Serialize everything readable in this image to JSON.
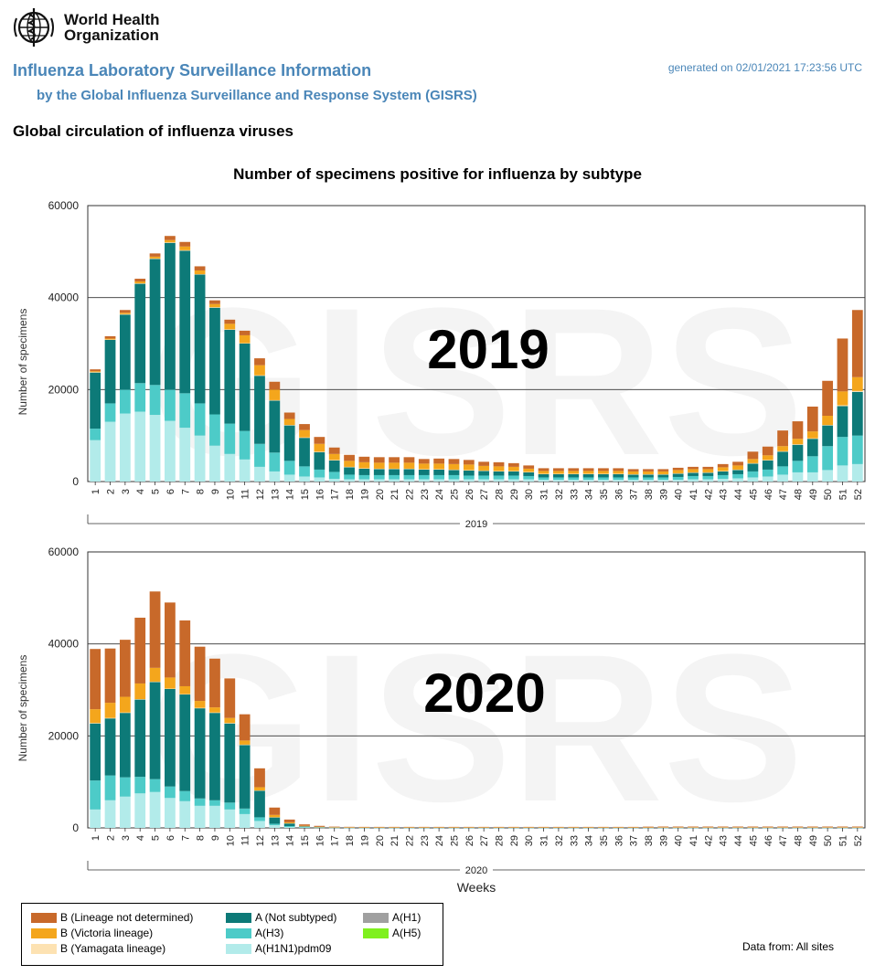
{
  "header": {
    "org_line1": "World Health",
    "org_line2": "Organization",
    "title": "Influenza Laboratory Surveillance Information",
    "subtitle": "by the Global Influenza Surveillance and Response System (GISRS)",
    "generated": "generated on 02/01/2021 17:23:56 UTC",
    "page_title": "Global circulation of influenza viruses"
  },
  "watermark": "GISRS",
  "colors": {
    "B_not_determined": "#c8692a",
    "B_victoria": "#f4a61c",
    "B_yamagata": "#fde2b2",
    "A_not_subtyped": "#0d7a78",
    "A_H3": "#4dcbc8",
    "A_H1N1pdm09": "#b2ebea",
    "A_H1": "#a0a0a0",
    "A_H5": "#7ff01e"
  },
  "legend": [
    {
      "key": "B_not_determined",
      "label": "B (Lineage not determined)"
    },
    {
      "key": "B_victoria",
      "label": "B (Victoria lineage)"
    },
    {
      "key": "B_yamagata",
      "label": "B (Yamagata lineage)"
    },
    {
      "key": "A_not_subtyped",
      "label": "A (Not subtyped)"
    },
    {
      "key": "A_H3",
      "label": "A(H3)"
    },
    {
      "key": "A_H1N1pdm09",
      "label": "A(H1N1)pdm09"
    },
    {
      "key": "A_H1",
      "label": "A(H1)"
    },
    {
      "key": "A_H5",
      "label": "A(H5)"
    }
  ],
  "data_from": "Data from: All sites",
  "chart_data": {
    "type": "bar",
    "stacked": true,
    "title": "Number of specimens positive for influenza by subtype",
    "ylabel": "Number of specimens",
    "xlabel": "Weeks",
    "ylim": [
      0,
      60000
    ],
    "yticks": [
      0,
      20000,
      40000,
      60000
    ],
    "grid": true,
    "stack_order": [
      "A_H1N1pdm09",
      "A_H3",
      "A_not_subtyped",
      "A_H1",
      "A_H5",
      "B_yamagata",
      "B_victoria",
      "B_not_determined"
    ],
    "panels": [
      {
        "year_label": "2019",
        "group_label": "2019",
        "weeks": [
          "1",
          "2",
          "3",
          "4",
          "5",
          "6",
          "7",
          "8",
          "9",
          "10",
          "11",
          "12",
          "13",
          "14",
          "15",
          "16",
          "17",
          "18",
          "19",
          "20",
          "21",
          "22",
          "23",
          "24",
          "25",
          "26",
          "27",
          "28",
          "29",
          "30",
          "31",
          "32",
          "33",
          "34",
          "35",
          "36",
          "37",
          "38",
          "39",
          "40",
          "41",
          "42",
          "43",
          "44",
          "45",
          "46",
          "47",
          "48",
          "49",
          "50",
          "51",
          "52"
        ],
        "series": [
          {
            "key": "A_H1N1pdm09",
            "values": [
              9000,
              13000,
              14800,
              15200,
              14500,
              13200,
              11700,
              10000,
              7800,
              6000,
              4800,
              3200,
              2200,
              1500,
              1100,
              900,
              600,
              500,
              500,
              500,
              500,
              500,
              500,
              500,
              500,
              500,
              500,
              500,
              500,
              500,
              400,
              400,
              400,
              400,
              400,
              400,
              400,
              400,
              400,
              400,
              500,
              500,
              600,
              700,
              900,
              1100,
              1500,
              2000,
              2000,
              2500,
              3500,
              3800
            ]
          },
          {
            "key": "A_H3",
            "values": [
              2500,
              4000,
              5200,
              6200,
              6500,
              6800,
              7500,
              7000,
              6800,
              6600,
              6200,
              5000,
              4100,
              3000,
              2200,
              1700,
              1500,
              1000,
              900,
              900,
              900,
              900,
              900,
              900,
              900,
              800,
              800,
              800,
              800,
              700,
              500,
              500,
              500,
              500,
              500,
              500,
              500,
              500,
              500,
              600,
              700,
              700,
              800,
              900,
              1300,
              1500,
              1800,
              2500,
              3500,
              5200,
              6200,
              6200
            ]
          },
          {
            "key": "A_not_subtyped",
            "values": [
              12200,
              13800,
              16300,
              21600,
              27400,
              31900,
              31000,
              28000,
              23200,
              20400,
              19000,
              14800,
              11300,
              7700,
              6200,
              3800,
              2500,
              1600,
              1400,
              1300,
              1300,
              1300,
              1200,
              1200,
              1100,
              1100,
              1000,
              900,
              900,
              800,
              700,
              700,
              700,
              700,
              700,
              700,
              600,
              600,
              600,
              700,
              700,
              700,
              800,
              900,
              1700,
              2000,
              3200,
              3500,
              3800,
              4500,
              6700,
              9500
            ]
          },
          {
            "key": "B_yamagata",
            "values": [
              100,
              100,
              100,
              100,
              100,
              100,
              100,
              100,
              100,
              100,
              100,
              100,
              100,
              100,
              100,
              100,
              100,
              100,
              100,
              100,
              100,
              100,
              100,
              100,
              100,
              100,
              100,
              100,
              100,
              100,
              100,
              100,
              100,
              100,
              100,
              100,
              100,
              100,
              100,
              100,
              100,
              100,
              100,
              100,
              100,
              100,
              100,
              100,
              100,
              100,
              200,
              200
            ]
          },
          {
            "key": "B_victoria",
            "values": [
              200,
              200,
              300,
              400,
              400,
              500,
              800,
              800,
              700,
              1200,
              1700,
              2200,
              2300,
              1300,
              1600,
              1700,
              1300,
              1300,
              1300,
              1300,
              1300,
              1300,
              1200,
              1200,
              1200,
              1200,
              1000,
              1000,
              900,
              700,
              600,
              600,
              600,
              600,
              600,
              600,
              600,
              600,
              600,
              700,
              700,
              700,
              800,
              900,
              900,
              1000,
              1100,
              1200,
              1500,
              2000,
              3000,
              3000
            ]
          },
          {
            "key": "B_not_determined",
            "values": [
              400,
              500,
              600,
              600,
              700,
              900,
              1000,
              900,
              800,
              900,
              1000,
              1500,
              1700,
              1400,
              1300,
              1500,
              1400,
              1300,
              1200,
              1200,
              1200,
              1200,
              1000,
              1100,
              1100,
              1000,
              900,
              900,
              800,
              700,
              600,
              600,
              600,
              600,
              600,
              600,
              500,
              500,
              500,
              500,
              500,
              500,
              700,
              800,
              1600,
              1900,
              3400,
              3800,
              5400,
              7600,
              11500,
              14600
            ]
          }
        ]
      },
      {
        "year_label": "2020",
        "group_label": "2020",
        "weeks": [
          "1",
          "2",
          "3",
          "4",
          "5",
          "6",
          "7",
          "8",
          "9",
          "10",
          "11",
          "12",
          "13",
          "14",
          "15",
          "16",
          "17",
          "18",
          "19",
          "20",
          "21",
          "22",
          "23",
          "24",
          "25",
          "26",
          "27",
          "28",
          "29",
          "30",
          "31",
          "32",
          "33",
          "34",
          "35",
          "36",
          "37",
          "38",
          "39",
          "40",
          "41",
          "42",
          "43",
          "44",
          "45",
          "46",
          "47",
          "48",
          "49",
          "50",
          "51",
          "52"
        ],
        "series": [
          {
            "key": "A_H1N1pdm09",
            "values": [
              4000,
              6000,
              6800,
              7500,
              7800,
              6500,
              5800,
              4800,
              4800,
              4000,
              3000,
              1500,
              600,
              200,
              100,
              50,
              30,
              20,
              20,
              20,
              20,
              20,
              20,
              20,
              20,
              20,
              20,
              20,
              20,
              20,
              20,
              20,
              20,
              20,
              20,
              20,
              20,
              20,
              20,
              20,
              20,
              20,
              20,
              20,
              20,
              20,
              20,
              20,
              20,
              20,
              20,
              20
            ]
          },
          {
            "key": "A_H3",
            "values": [
              6300,
              5400,
              4200,
              3600,
              2800,
              2500,
              2200,
              1600,
              1200,
              1500,
              1200,
              800,
              300,
              200,
              100,
              50,
              30,
              20,
              20,
              20,
              20,
              20,
              20,
              20,
              20,
              20,
              20,
              20,
              20,
              20,
              20,
              20,
              20,
              20,
              20,
              20,
              20,
              20,
              20,
              20,
              20,
              20,
              20,
              20,
              20,
              20,
              20,
              20,
              20,
              20,
              20,
              20
            ]
          },
          {
            "key": "A_not_subtyped",
            "values": [
              12400,
              12400,
              14000,
              16800,
              21100,
              21200,
              21000,
              19600,
              19000,
              17200,
              13800,
              5800,
              1400,
              600,
              150,
              80,
              50,
              30,
              30,
              30,
              30,
              30,
              30,
              30,
              30,
              30,
              30,
              30,
              30,
              30,
              30,
              30,
              30,
              30,
              30,
              30,
              30,
              30,
              30,
              30,
              30,
              30,
              30,
              30,
              30,
              30,
              30,
              30,
              30,
              30,
              30,
              30
            ]
          },
          {
            "key": "B_yamagata",
            "values": [
              100,
              100,
              100,
              100,
              100,
              100,
              100,
              100,
              100,
              100,
              100,
              50,
              20,
              10,
              10,
              10,
              10,
              10,
              10,
              10,
              10,
              10,
              10,
              10,
              10,
              10,
              10,
              10,
              10,
              10,
              10,
              10,
              10,
              10,
              10,
              10,
              10,
              10,
              10,
              10,
              10,
              10,
              10,
              10,
              10,
              10,
              10,
              10,
              10,
              10,
              10,
              10
            ]
          },
          {
            "key": "B_victoria",
            "values": [
              3000,
              3300,
              3400,
              3400,
              3000,
              2400,
              1700,
              1500,
              1100,
              1100,
              900,
              700,
              500,
              200,
              100,
              50,
              50,
              50,
              40,
              40,
              40,
              40,
              40,
              40,
              40,
              40,
              40,
              40,
              40,
              40,
              40,
              40,
              40,
              40,
              40,
              40,
              40,
              40,
              60,
              60,
              60,
              60,
              60,
              60,
              60,
              60,
              60,
              60,
              60,
              60,
              60,
              60
            ]
          },
          {
            "key": "B_not_determined",
            "values": [
              13100,
              11800,
              12400,
              14300,
              16600,
              16300,
              14300,
              11800,
              10600,
              8600,
              5700,
              4100,
              1600,
              600,
              300,
              200,
              100,
              100,
              100,
              100,
              100,
              100,
              100,
              100,
              100,
              100,
              100,
              100,
              100,
              100,
              100,
              100,
              100,
              100,
              100,
              100,
              100,
              150,
              150,
              150,
              150,
              150,
              150,
              150,
              150,
              150,
              150,
              150,
              150,
              150,
              150,
              150
            ]
          }
        ]
      }
    ]
  }
}
